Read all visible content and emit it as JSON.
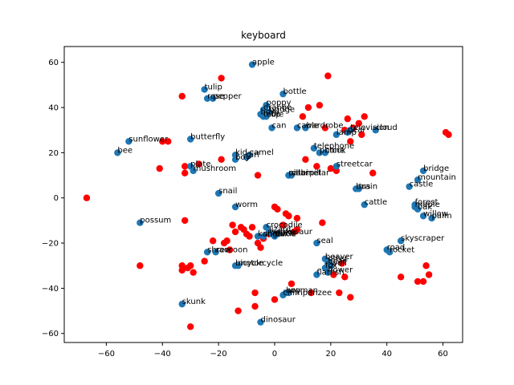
{
  "chart_data": {
    "type": "scatter",
    "title": "keyboard",
    "xlabel": "",
    "ylabel": "",
    "xlim": [
      -75,
      67
    ],
    "ylim": [
      -64,
      67
    ],
    "xticks": [
      -60,
      -40,
      -20,
      0,
      20,
      40,
      60
    ],
    "yticks": [
      -60,
      -40,
      -20,
      0,
      20,
      40,
      60
    ],
    "grid": false,
    "colors": {
      "labeled": "#1f77b4",
      "unlabeled": "#ff0000"
    },
    "labeled_points": [
      {
        "label": "apple",
        "x": -8,
        "y": 59
      },
      {
        "label": "tulip",
        "x": -25,
        "y": 48
      },
      {
        "label": "rose",
        "x": -24,
        "y": 44
      },
      {
        "label": "pepper",
        "x": -22,
        "y": 44
      },
      {
        "label": "bottle",
        "x": 3,
        "y": 46
      },
      {
        "label": "poppy",
        "x": -3,
        "y": 41
      },
      {
        "label": "orange",
        "x": -4,
        "y": 39
      },
      {
        "label": "bridge",
        "x": -2,
        "y": 38
      },
      {
        "label": "bowl",
        "x": -5,
        "y": 37
      },
      {
        "label": "table",
        "x": -4,
        "y": 36
      },
      {
        "label": "cup",
        "x": -3,
        "y": 36
      },
      {
        "label": "can",
        "x": -1,
        "y": 31
      },
      {
        "label": "cable",
        "x": 8,
        "y": 31
      },
      {
        "label": "wardrobe",
        "x": 11,
        "y": 31
      },
      {
        "label": "lamp",
        "x": 22,
        "y": 28
      },
      {
        "label": "pear",
        "x": 26,
        "y": 29
      },
      {
        "label": "television",
        "x": 27,
        "y": 30
      },
      {
        "label": "cloud",
        "x": 36,
        "y": 30
      },
      {
        "label": "telephone",
        "x": 14,
        "y": 22
      },
      {
        "label": "phone",
        "x": 16,
        "y": 20
      },
      {
        "label": "clock",
        "x": 18,
        "y": 20
      },
      {
        "label": "sunflower",
        "x": -52,
        "y": 25
      },
      {
        "label": "bee",
        "x": -56,
        "y": 20
      },
      {
        "label": "butterfly",
        "x": -30,
        "y": 26
      },
      {
        "label": "kid",
        "x": -14,
        "y": 19
      },
      {
        "label": "camel",
        "x": -9,
        "y": 19
      },
      {
        "label": "boy",
        "x": -14,
        "y": 17
      },
      {
        "label": "girl",
        "x": -10,
        "y": 18
      },
      {
        "label": "plate",
        "x": -30,
        "y": 14
      },
      {
        "label": "mushroom",
        "x": -29,
        "y": 12
      },
      {
        "label": "streetcar",
        "x": 22,
        "y": 14
      },
      {
        "label": "caterpillar",
        "x": 5,
        "y": 10
      },
      {
        "label": "pillar",
        "x": 5,
        "y": 10
      },
      {
        "label": "cabinet",
        "x": 6,
        "y": 10
      },
      {
        "label": "bridge",
        "x": 53,
        "y": 12
      },
      {
        "label": "mountain",
        "x": 51,
        "y": 8
      },
      {
        "label": "castle",
        "x": 48,
        "y": 5
      },
      {
        "label": "bus",
        "x": 29,
        "y": 4
      },
      {
        "label": "train",
        "x": 30,
        "y": 4
      },
      {
        "label": "snail",
        "x": -20,
        "y": 2
      },
      {
        "label": "cattle",
        "x": 32,
        "y": -3
      },
      {
        "label": "forest",
        "x": 50,
        "y": -3
      },
      {
        "label": "maple",
        "x": 50,
        "y": -4
      },
      {
        "label": "oak",
        "x": 51,
        "y": -5
      },
      {
        "label": "willow",
        "x": 53,
        "y": -8
      },
      {
        "label": "palm",
        "x": 56,
        "y": -9
      },
      {
        "label": "worm",
        "x": -14,
        "y": -4
      },
      {
        "label": "possum",
        "x": -48,
        "y": -11
      },
      {
        "label": "crocodile",
        "x": -3,
        "y": -13
      },
      {
        "label": "lizard",
        "x": -2,
        "y": -15
      },
      {
        "label": "snake",
        "x": -1,
        "y": -16
      },
      {
        "label": "dinosaur",
        "x": 1,
        "y": -16
      },
      {
        "label": "turtle",
        "x": 0,
        "y": -17
      },
      {
        "label": "shrew",
        "x": -4,
        "y": -17
      },
      {
        "label": "kangaroo",
        "x": -6,
        "y": -17
      },
      {
        "label": "seal",
        "x": 15,
        "y": -20
      },
      {
        "label": "skyscraper",
        "x": 45,
        "y": -19
      },
      {
        "label": "road",
        "x": 40,
        "y": -23
      },
      {
        "label": "rocket",
        "x": 41,
        "y": -24
      },
      {
        "label": "shrew",
        "x": -24,
        "y": -24
      },
      {
        "label": "raccoon",
        "x": -21,
        "y": -24
      },
      {
        "label": "bicycle",
        "x": -14,
        "y": -30
      },
      {
        "label": "motorcycle",
        "x": -13,
        "y": -30
      },
      {
        "label": "beaver",
        "x": 18,
        "y": -27
      },
      {
        "label": "otter",
        "x": 19,
        "y": -28
      },
      {
        "label": "bear",
        "x": 19,
        "y": -29
      },
      {
        "label": "wolf",
        "x": 20,
        "y": -30
      },
      {
        "label": "fox",
        "x": 18,
        "y": -31
      },
      {
        "label": "flatfish",
        "x": 15,
        "y": -34
      },
      {
        "label": "flower",
        "x": 19,
        "y": -33
      },
      {
        "label": "chimpanzee",
        "x": 3,
        "y": -43
      },
      {
        "label": "boy",
        "x": 4,
        "y": -42
      },
      {
        "label": "woman",
        "x": 5,
        "y": -42
      },
      {
        "label": "skunk",
        "x": -33,
        "y": -47
      },
      {
        "label": "dinosaur",
        "x": -5,
        "y": -55
      }
    ],
    "unlabeled_points": [
      [
        -67,
        0
      ],
      [
        -48,
        -30
      ],
      [
        -41,
        13
      ],
      [
        -40,
        25
      ],
      [
        -38,
        25
      ],
      [
        -33,
        45
      ],
      [
        -32,
        14
      ],
      [
        -32,
        11
      ],
      [
        -32,
        -10
      ],
      [
        -33,
        -30
      ],
      [
        -33,
        -32
      ],
      [
        -31,
        -31
      ],
      [
        -30,
        -30
      ],
      [
        -29,
        -33
      ],
      [
        -30,
        -57
      ],
      [
        -27,
        15
      ],
      [
        -25,
        -28
      ],
      [
        -22,
        -19
      ],
      [
        -19,
        17
      ],
      [
        -19,
        53
      ],
      [
        -18,
        -20
      ],
      [
        -17,
        -19
      ],
      [
        -16,
        -23
      ],
      [
        -15,
        -12
      ],
      [
        -14,
        -15
      ],
      [
        -13,
        -50
      ],
      [
        -12,
        -13
      ],
      [
        -11,
        -14
      ],
      [
        -10,
        -16
      ],
      [
        -9,
        -17
      ],
      [
        -8,
        -13
      ],
      [
        -7,
        -42
      ],
      [
        -7,
        -48
      ],
      [
        -6,
        10
      ],
      [
        -6,
        -20
      ],
      [
        -5,
        -22
      ],
      [
        -4,
        -18
      ],
      [
        -2,
        -16
      ],
      [
        0,
        -4
      ],
      [
        1,
        -5
      ],
      [
        0,
        -45
      ],
      [
        3,
        -12
      ],
      [
        4,
        -7
      ],
      [
        5,
        -8
      ],
      [
        6,
        -38
      ],
      [
        7,
        -15
      ],
      [
        8,
        -9
      ],
      [
        8,
        -14
      ],
      [
        10,
        36
      ],
      [
        11,
        17
      ],
      [
        12,
        40
      ],
      [
        13,
        -42
      ],
      [
        15,
        14
      ],
      [
        16,
        41
      ],
      [
        17,
        -11
      ],
      [
        18,
        31
      ],
      [
        19,
        54
      ],
      [
        20,
        13
      ],
      [
        21,
        -34
      ],
      [
        22,
        12
      ],
      [
        23,
        -42
      ],
      [
        24,
        -29
      ],
      [
        25,
        30
      ],
      [
        25,
        -35
      ],
      [
        26,
        35
      ],
      [
        27,
        25
      ],
      [
        27,
        -44
      ],
      [
        28,
        31
      ],
      [
        30,
        33
      ],
      [
        31,
        28
      ],
      [
        32,
        36
      ],
      [
        35,
        11
      ],
      [
        45,
        -35
      ],
      [
        51,
        -37
      ],
      [
        53,
        -37
      ],
      [
        54,
        -30
      ],
      [
        55,
        -34
      ],
      [
        61,
        29
      ],
      [
        62,
        28
      ]
    ]
  }
}
